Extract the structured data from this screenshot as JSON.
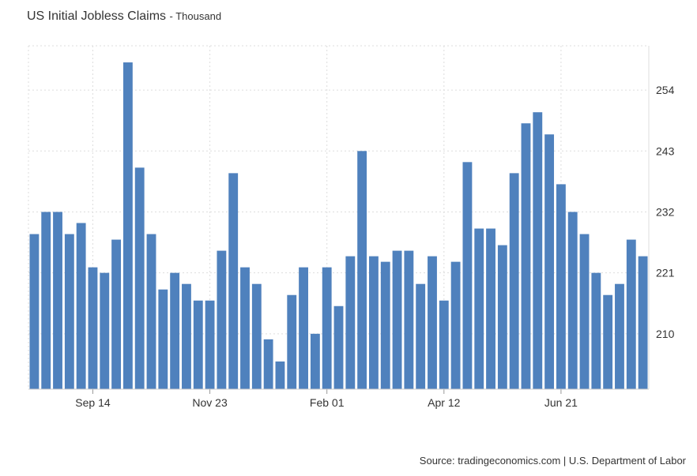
{
  "header": {
    "title": "US Initial Jobless Claims",
    "subtitle": "- Thousand"
  },
  "footer": {
    "source": "Source: tradingeconomics.com | U.S. Department of Labor"
  },
  "colors": {
    "bar": "#4f81bd",
    "grid": "#dddddd",
    "text": "#333333"
  },
  "chart_data": {
    "type": "bar",
    "title": "US Initial Jobless Claims",
    "subtitle": "Thousand",
    "ylabel": "",
    "xlabel": "",
    "ylim": [
      200,
      262
    ],
    "yticks": [
      210,
      221,
      232,
      243,
      254
    ],
    "y_axis_position": "right",
    "grid": true,
    "x_tick_labels": [
      {
        "label": "Sep 14",
        "index": 5
      },
      {
        "label": "Nov 23",
        "index": 15
      },
      {
        "label": "Feb 01",
        "index": 25
      },
      {
        "label": "Apr 12",
        "index": 35
      },
      {
        "label": "Jun 21",
        "index": 45
      }
    ],
    "series": [
      {
        "values": [
          228,
          232,
          232,
          228,
          230,
          222,
          221,
          227,
          259,
          240,
          228,
          218,
          221,
          219,
          216,
          216,
          225,
          239,
          222,
          219,
          209,
          205,
          217,
          222,
          210,
          222,
          215,
          224,
          243,
          224,
          223,
          225,
          225,
          219,
          224,
          216,
          223,
          241,
          229,
          229,
          226,
          239,
          248,
          250,
          246,
          237,
          232,
          228,
          221,
          217,
          219,
          227,
          224
        ]
      }
    ]
  }
}
